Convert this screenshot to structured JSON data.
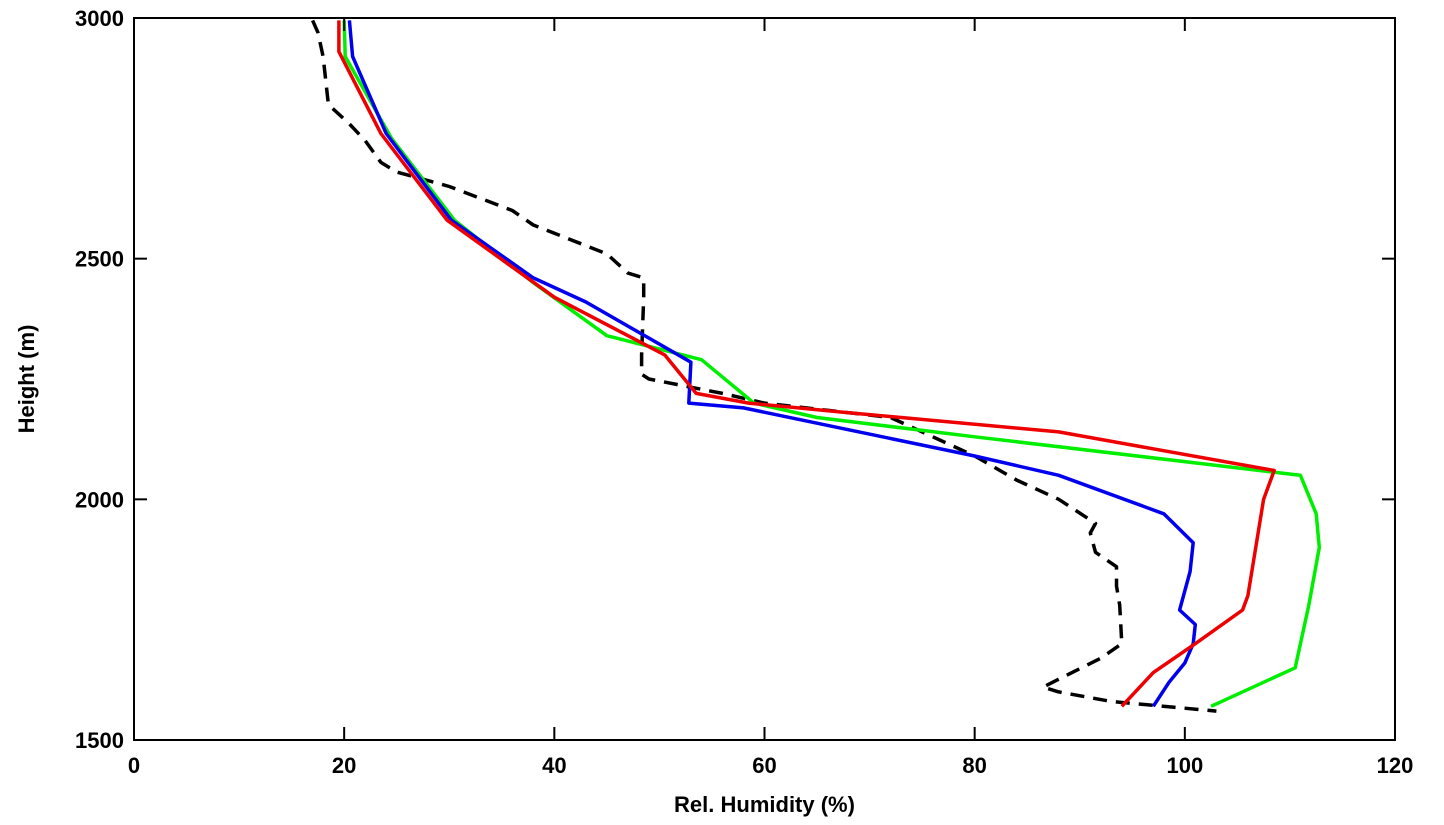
{
  "chart_data": {
    "type": "line",
    "title": "",
    "xlabel": "Rel. Humidity (%)",
    "ylabel": "Height (m)",
    "xlim": [
      0,
      120
    ],
    "ylim": [
      1500,
      3000
    ],
    "xticks": [
      0,
      20,
      40,
      60,
      80,
      100,
      120
    ],
    "yticks": [
      1500,
      2000,
      2500,
      3000
    ],
    "grid": false,
    "legend": "none",
    "series": [
      {
        "color": "#000000",
        "style": "dashed",
        "points": [
          [
            17.0,
            2995
          ],
          [
            17.5,
            2970
          ],
          [
            18.0,
            2920
          ],
          [
            18.5,
            2820
          ],
          [
            20.5,
            2780
          ],
          [
            22.0,
            2745
          ],
          [
            23.5,
            2700
          ],
          [
            25.0,
            2680
          ],
          [
            30.0,
            2650
          ],
          [
            36.0,
            2600
          ],
          [
            38.0,
            2570
          ],
          [
            45.0,
            2510
          ],
          [
            47.0,
            2470
          ],
          [
            48.5,
            2460
          ],
          [
            48.5,
            2420
          ],
          [
            48.3,
            2300
          ],
          [
            48.3,
            2260
          ],
          [
            49.0,
            2250
          ],
          [
            56.0,
            2220
          ],
          [
            60.0,
            2200
          ],
          [
            72.0,
            2170
          ],
          [
            80.0,
            2090
          ],
          [
            84.0,
            2040
          ],
          [
            88.0,
            2000
          ],
          [
            91.5,
            1950
          ],
          [
            91.0,
            1930
          ],
          [
            91.5,
            1890
          ],
          [
            93.5,
            1860
          ],
          [
            93.5,
            1820
          ],
          [
            93.8,
            1780
          ],
          [
            94.0,
            1700
          ],
          [
            92.0,
            1670
          ],
          [
            86.5,
            1610
          ],
          [
            88.0,
            1600
          ],
          [
            93.0,
            1580
          ],
          [
            103.0,
            1560
          ]
        ]
      },
      {
        "color": "#00ee00",
        "style": "solid",
        "points": [
          [
            20.0,
            2995
          ],
          [
            20.1,
            2920
          ],
          [
            24.5,
            2750
          ],
          [
            30.5,
            2580
          ],
          [
            38.0,
            2450
          ],
          [
            45.0,
            2340
          ],
          [
            54.0,
            2290
          ],
          [
            59.0,
            2200
          ],
          [
            65.0,
            2170
          ],
          [
            80.0,
            2130
          ],
          [
            111.0,
            2050
          ],
          [
            112.5,
            1970
          ],
          [
            112.8,
            1900
          ],
          [
            111.8,
            1780
          ],
          [
            110.5,
            1650
          ],
          [
            102.5,
            1570
          ]
        ]
      },
      {
        "color": "#0000ee",
        "style": "solid",
        "points": [
          [
            20.5,
            2995
          ],
          [
            20.8,
            2920
          ],
          [
            24.0,
            2760
          ],
          [
            30.2,
            2580
          ],
          [
            38.0,
            2460
          ],
          [
            43.0,
            2410
          ],
          [
            53.0,
            2285
          ],
          [
            52.8,
            2200
          ],
          [
            58.0,
            2190
          ],
          [
            80.0,
            2090
          ],
          [
            88.0,
            2050
          ],
          [
            98.0,
            1970
          ],
          [
            100.8,
            1910
          ],
          [
            100.5,
            1850
          ],
          [
            99.5,
            1770
          ],
          [
            101.0,
            1740
          ],
          [
            100.8,
            1700
          ],
          [
            100.0,
            1660
          ],
          [
            98.5,
            1620
          ],
          [
            97.0,
            1570
          ]
        ]
      },
      {
        "color": "#ee0000",
        "style": "solid",
        "points": [
          [
            19.5,
            2995
          ],
          [
            19.5,
            2930
          ],
          [
            23.5,
            2760
          ],
          [
            29.8,
            2580
          ],
          [
            40.0,
            2420
          ],
          [
            50.5,
            2300
          ],
          [
            53.5,
            2220
          ],
          [
            58.5,
            2200
          ],
          [
            68.0,
            2180
          ],
          [
            88.0,
            2140
          ],
          [
            108.5,
            2060
          ],
          [
            107.5,
            2000
          ],
          [
            106.0,
            1800
          ],
          [
            105.5,
            1770
          ],
          [
            101.0,
            1700
          ],
          [
            97.0,
            1640
          ],
          [
            94.0,
            1570
          ]
        ]
      }
    ]
  }
}
